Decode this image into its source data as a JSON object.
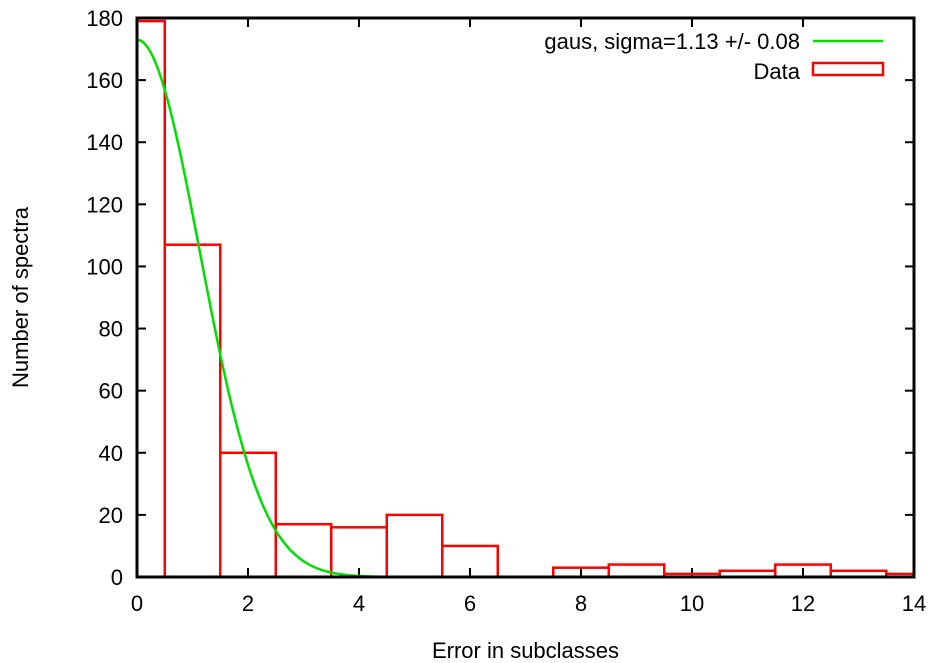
{
  "chart_data": {
    "type": "bar",
    "xlabel": "Error in subclasses",
    "ylabel": "Number of spectra",
    "xlim": [
      0,
      14
    ],
    "ylim": [
      0,
      180
    ],
    "xticks": [
      "0",
      "2",
      "4",
      "6",
      "8",
      "10",
      "12",
      "14"
    ],
    "yticks": [
      "0",
      "20",
      "40",
      "60",
      "80",
      "100",
      "120",
      "140",
      "160",
      "180"
    ],
    "grid": false,
    "legend_position": "top-right",
    "series": [
      {
        "name": "Data",
        "kind": "histogram-steps",
        "color": "#ff0000",
        "bins": [
          {
            "x0": 0.0,
            "x1": 0.5,
            "value": 179
          },
          {
            "x0": 0.5,
            "x1": 1.5,
            "value": 107
          },
          {
            "x0": 1.5,
            "x1": 2.5,
            "value": 40
          },
          {
            "x0": 2.5,
            "x1": 3.5,
            "value": 17
          },
          {
            "x0": 3.5,
            "x1": 4.5,
            "value": 16
          },
          {
            "x0": 4.5,
            "x1": 5.5,
            "value": 20
          },
          {
            "x0": 5.5,
            "x1": 6.5,
            "value": 10
          },
          {
            "x0": 6.5,
            "x1": 7.5,
            "value": 0
          },
          {
            "x0": 7.5,
            "x1": 8.5,
            "value": 3
          },
          {
            "x0": 8.5,
            "x1": 9.5,
            "value": 4
          },
          {
            "x0": 9.5,
            "x1": 10.5,
            "value": 1
          },
          {
            "x0": 10.5,
            "x1": 11.5,
            "value": 2
          },
          {
            "x0": 11.5,
            "x1": 12.5,
            "value": 4
          },
          {
            "x0": 12.5,
            "x1": 13.5,
            "value": 2
          },
          {
            "x0": 13.5,
            "x1": 14.0,
            "value": 1
          }
        ]
      },
      {
        "name": "gaus, sigma=1.13 +/- 0.08",
        "kind": "gaussian-curve",
        "color": "#00dd00",
        "amplitude": 173,
        "mean": 0,
        "sigma": 1.13
      }
    ]
  }
}
